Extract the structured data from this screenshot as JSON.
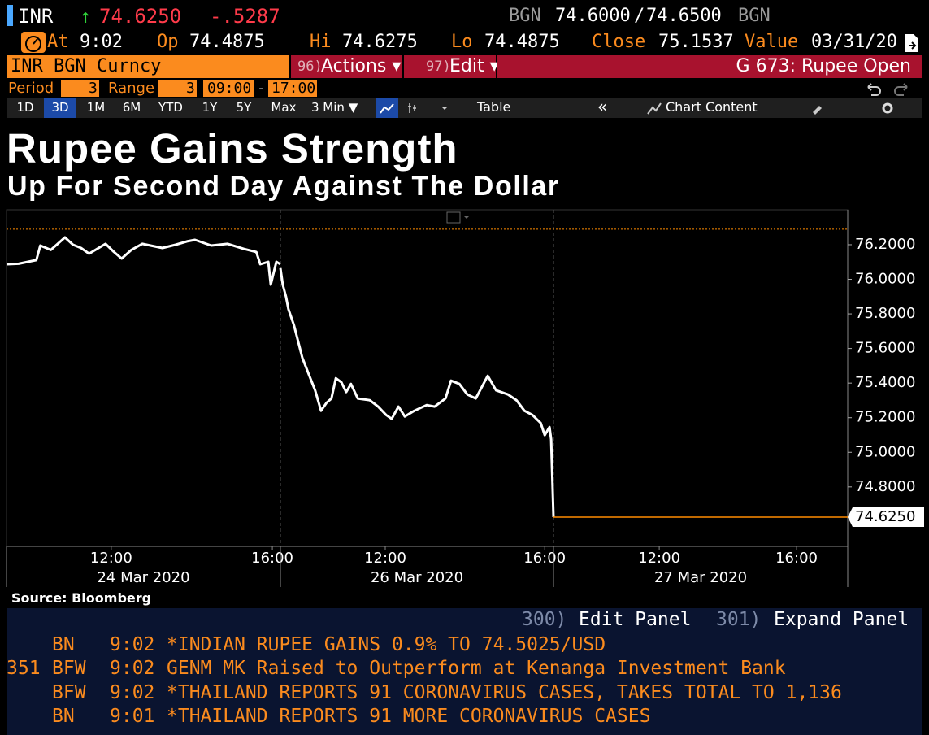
{
  "header": {
    "ticker": "INR",
    "arrow": "↑",
    "last": "74.6250",
    "change": "-.5287",
    "bid_source": "BGN",
    "bid": "74.6000",
    "separator": "/",
    "ask": "74.6500",
    "ask_source": "BGN"
  },
  "quote": [
    {
      "label": "At",
      "value": "9:02"
    },
    {
      "label": "Op",
      "value": "74.4875"
    },
    {
      "label": "Hi",
      "value": "74.6275"
    },
    {
      "label": "Lo",
      "value": "74.4875"
    },
    {
      "label": "Close",
      "value": "75.1537"
    },
    {
      "label": "Value",
      "value": "03/31/20"
    }
  ],
  "command_bar": {
    "security": "INR BGN Curncy",
    "actions": {
      "number": "96)",
      "label": "Actions ▾"
    },
    "edit": {
      "number": "97)",
      "label": "Edit ▾"
    },
    "function": "G 673: Rupee Open"
  },
  "period_bar": {
    "period_label": "Period",
    "period": "3",
    "range_label": "Range",
    "range": "3",
    "start": "09:00",
    "dash": "-",
    "end": "17:00"
  },
  "toolbar": {
    "ranges": [
      "1D",
      "3D",
      "1M",
      "6M",
      "YTD",
      "1Y",
      "5Y",
      "Max"
    ],
    "selected": 1,
    "interval": "3 Min ▼",
    "table": "Table",
    "collapse": "«",
    "chart_content": "Chart Content"
  },
  "chart_data": {
    "type": "line",
    "title": "Rupee Gains Strength",
    "subtitle": "Up For Second Day Against The Dollar",
    "ylim": [
      74.456,
      76.402
    ],
    "yticks": [
      {
        "value": 74.8,
        "label": "74.8000"
      },
      {
        "value": 75.0,
        "label": "75.0000"
      },
      {
        "value": 75.2,
        "label": "75.2000"
      },
      {
        "value": 75.4,
        "label": "75.4000"
      },
      {
        "value": 75.6,
        "label": "75.6000"
      },
      {
        "value": 75.8,
        "label": "75.8000"
      },
      {
        "value": 76.0,
        "label": "76.0000"
      },
      {
        "value": 76.2,
        "label": "76.2000"
      }
    ],
    "panels": [
      {
        "date": "24 Mar 2020",
        "xlim": [
          9.4,
          16.2
        ],
        "xticks": [
          {
            "value": 12,
            "label": "12:00"
          },
          {
            "value": 16,
            "label": "16:00"
          }
        ]
      },
      {
        "date": "26 Mar 2020",
        "xlim": [
          9.37,
          16.22
        ],
        "xticks": [
          {
            "value": 12,
            "label": "12:00"
          },
          {
            "value": 16,
            "label": "16:00"
          }
        ]
      },
      {
        "date": "27 Mar 2020",
        "xlim": [
          8.92,
          17.49
        ],
        "xticks": [
          {
            "value": 12,
            "label": "12:00"
          },
          {
            "value": 16,
            "label": "16:00"
          }
        ]
      }
    ],
    "series": [
      {
        "color": "#ffffff",
        "panel": 0,
        "x": [
          9.4,
          9.7,
          10.14,
          10.24,
          10.5,
          10.85,
          11.05,
          11.25,
          11.45,
          11.86,
          12.06,
          12.26,
          12.5,
          12.77,
          13.27,
          13.6,
          13.88,
          14.08,
          14.48,
          14.89,
          15.29,
          15.6,
          15.7,
          15.9,
          15.96,
          16.1,
          16.2
        ],
        "values": [
          76.087,
          76.09,
          76.111,
          76.195,
          76.17,
          76.242,
          76.2,
          76.181,
          76.148,
          76.205,
          76.16,
          76.12,
          76.17,
          76.205,
          76.181,
          76.2,
          76.219,
          76.228,
          76.195,
          76.205,
          76.176,
          76.158,
          76.087,
          76.101,
          75.969,
          76.101,
          76.087
        ]
      },
      {
        "color": "#ffffff",
        "panel": 1,
        "x": [
          9.37,
          9.43,
          9.51,
          9.57,
          9.71,
          9.92,
          10.08,
          10.24,
          10.39,
          10.53,
          10.65,
          10.76,
          10.9,
          11.02,
          11.14,
          11.31,
          11.61,
          11.82,
          12.02,
          12.16,
          12.33,
          12.49,
          12.73,
          13.04,
          13.24,
          13.51,
          13.65,
          13.86,
          14.06,
          14.27,
          14.57,
          14.78,
          15.08,
          15.29,
          15.49,
          15.69,
          15.9,
          16.0,
          16.12,
          16.16,
          16.22
        ],
        "values": [
          76.064,
          75.969,
          75.899,
          75.828,
          75.734,
          75.546,
          75.452,
          75.358,
          75.24,
          75.287,
          75.311,
          75.428,
          75.405,
          75.348,
          75.395,
          75.311,
          75.301,
          75.264,
          75.216,
          75.193,
          75.264,
          75.207,
          75.24,
          75.273,
          75.264,
          75.311,
          75.414,
          75.395,
          75.334,
          75.311,
          75.442,
          75.358,
          75.334,
          75.301,
          75.24,
          75.216,
          75.169,
          75.099,
          75.146,
          75.075,
          74.625
        ]
      }
    ],
    "last_value": {
      "value": 74.625,
      "label": "74.6250",
      "color": "#ff8c00"
    },
    "reference_line": {
      "value": 76.29,
      "color": "#ff8c00",
      "style": "dotted"
    },
    "source": "Source: Bloomberg"
  },
  "news": {
    "buttons": [
      {
        "number": "300)",
        "label": "Edit Panel"
      },
      {
        "number": "301)",
        "label": "Expand Panel"
      }
    ],
    "items": [
      {
        "source": "BN",
        "time": "9:02",
        "headline": "*INDIAN RUPEE GAINS 0.9% TO 74.5025/USD"
      },
      {
        "id": "351",
        "source": "BFW",
        "time": "9:02",
        "headline": "GENM MK Raised to Outperform at Kenanga Investment Bank"
      },
      {
        "source": "BFW",
        "time": "9:02",
        "headline": "*THAILAND REPORTS 91 CORONAVIRUS CASES, TAKES TOTAL TO 1,136"
      },
      {
        "source": "BN",
        "time": "9:01",
        "headline": "*THAILAND REPORTS 91 MORE CORONAVIRUS CASES"
      }
    ]
  }
}
